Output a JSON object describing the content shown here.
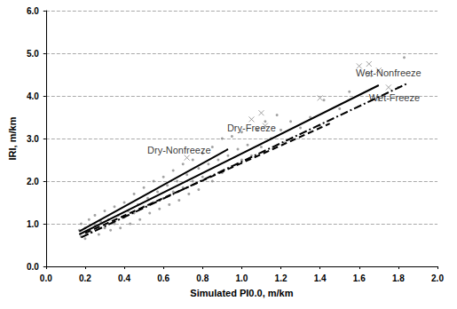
{
  "chart_data": {
    "type": "scatter",
    "x_label": "Simulated PI0.0, m/km",
    "y_label": "IRI, m/km",
    "xlim": [
      0,
      2
    ],
    "ylim": [
      0,
      6
    ],
    "xticks": [
      {
        "value": 0,
        "label": "0.0"
      },
      0.2,
      0.4,
      0.6,
      0.8,
      {
        "value": 1,
        "label": "1.0"
      },
      1.2,
      1.4,
      1.6,
      1.8,
      {
        "value": 2,
        "label": "2.0"
      }
    ],
    "yticks": [
      {
        "value": 0,
        "label": "0.0"
      },
      {
        "value": 1,
        "label": "1.0"
      },
      {
        "value": 2,
        "label": "2.0"
      },
      {
        "value": 3,
        "label": "3.0"
      },
      {
        "value": 4,
        "label": "4.0"
      },
      {
        "value": 5,
        "label": "5.0"
      },
      {
        "value": 6,
        "label": "6.0"
      }
    ],
    "grid": "y",
    "series": [
      {
        "type": "scatter",
        "marker": "circle",
        "color": "#8c8c8c",
        "x": [
          0.17,
          0.18,
          0.18,
          0.2,
          0.2,
          0.22,
          0.23,
          0.25,
          0.25,
          0.27,
          0.28,
          0.3,
          0.3,
          0.32,
          0.33,
          0.35,
          0.35,
          0.37,
          0.38,
          0.4,
          0.4,
          0.42,
          0.43,
          0.45,
          0.45,
          0.47,
          0.48,
          0.5,
          0.5,
          0.52,
          0.53,
          0.55,
          0.55,
          0.57,
          0.58,
          0.6,
          0.6,
          0.62,
          0.63,
          0.65,
          0.65,
          0.67,
          0.68,
          0.7,
          0.7,
          0.72,
          0.73,
          0.75,
          0.75,
          0.78,
          0.78,
          0.8,
          0.8,
          0.83,
          0.85,
          0.85,
          0.88,
          0.9,
          0.9,
          0.93,
          0.95,
          0.95,
          0.98,
          1.0,
          1.0,
          1.03,
          1.05,
          1.08,
          1.1,
          1.12,
          1.15,
          1.18,
          1.2,
          1.22,
          1.25,
          1.3,
          1.35,
          1.4,
          1.42,
          1.5,
          1.55,
          1.7,
          1.8,
          1.83
        ],
        "values": [
          0.85,
          0.7,
          1.0,
          0.9,
          0.65,
          1.1,
          0.8,
          0.95,
          1.2,
          0.75,
          1.05,
          1.3,
          0.9,
          1.1,
          0.85,
          1.4,
          1.0,
          1.2,
          0.9,
          1.5,
          1.15,
          1.3,
          1.0,
          1.7,
          1.25,
          1.45,
          1.1,
          1.85,
          1.4,
          1.6,
          1.25,
          2.0,
          1.5,
          1.75,
          1.35,
          2.1,
          1.6,
          1.9,
          1.45,
          2.25,
          1.75,
          2.0,
          1.55,
          2.4,
          1.85,
          2.15,
          1.7,
          2.5,
          2.0,
          2.3,
          1.8,
          2.65,
          2.1,
          2.4,
          2.0,
          2.8,
          2.5,
          2.2,
          3.0,
          2.6,
          2.35,
          3.05,
          2.75,
          2.5,
          3.15,
          2.85,
          2.6,
          3.2,
          2.8,
          3.4,
          3.0,
          3.55,
          3.2,
          2.9,
          3.4,
          3.25,
          3.5,
          3.3,
          3.9,
          3.7,
          4.1,
          3.9,
          4.2,
          4.9
        ]
      },
      {
        "type": "scatter",
        "marker": "x",
        "color": "#8c8c8c",
        "x": [
          0.72,
          1.05,
          1.1,
          1.12,
          1.4,
          1.6,
          1.65,
          1.65,
          1.7,
          1.75
        ],
        "values": [
          2.55,
          3.45,
          3.6,
          3.3,
          3.95,
          4.7,
          4.75,
          4.5,
          4.6,
          4.2
        ]
      },
      {
        "type": "line",
        "name": "Dry-Nonfreeze",
        "line_style": "solid",
        "color": "#000000",
        "x": [
          0.17,
          0.93
        ],
        "values": [
          0.82,
          2.75
        ],
        "label_at": [
          0.68,
          2.72
        ]
      },
      {
        "type": "line",
        "name": "Dry-Freeze",
        "line_style": "dashed",
        "color": "#000000",
        "x": [
          0.2,
          1.45
        ],
        "values": [
          0.78,
          3.35
        ],
        "label_at": [
          1.05,
          3.25
        ]
      },
      {
        "type": "line",
        "name": "Wet-Nonfreeze",
        "line_style": "solid",
        "color": "#000000",
        "x": [
          0.17,
          1.7
        ],
        "values": [
          0.75,
          4.25
        ],
        "label_at": [
          1.75,
          4.55
        ]
      },
      {
        "type": "line",
        "name": "Wet-Freeze",
        "line_style": "dashdot",
        "color": "#000000",
        "x": [
          0.18,
          1.85
        ],
        "values": [
          0.68,
          4.3
        ],
        "label_at": [
          1.78,
          3.95
        ]
      }
    ]
  }
}
